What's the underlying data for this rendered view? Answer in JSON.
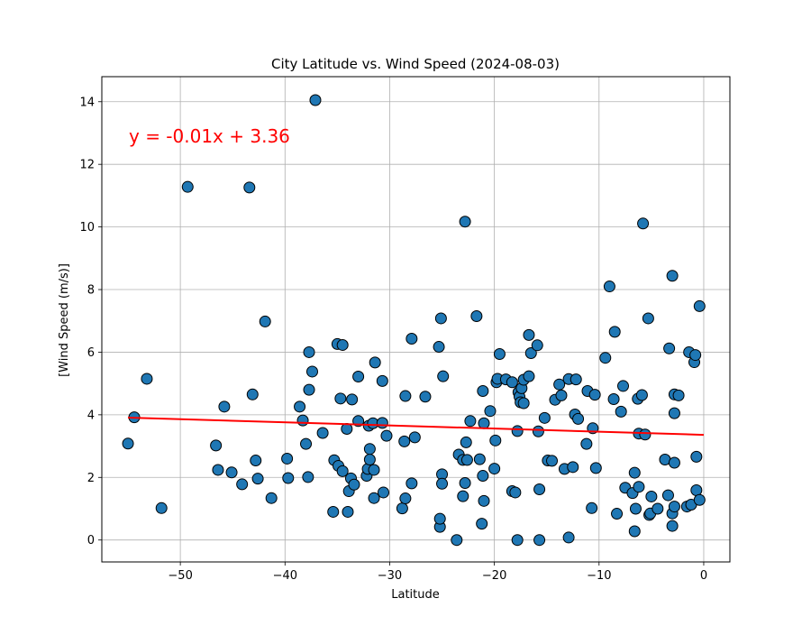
{
  "chart_data": {
    "type": "scatter",
    "title": "City Latitude vs. Wind Speed (2024-08-03)",
    "xlabel": "Latitude",
    "ylabel": "[Wind Speed (m/s)]",
    "xlim": [
      -57.5,
      2.5
    ],
    "ylim": [
      -0.7,
      14.8
    ],
    "xticks": [
      -50,
      -40,
      -30,
      -20,
      -10,
      0
    ],
    "xtick_labels": [
      "−50",
      "−40",
      "−30",
      "−20",
      "−10",
      "0"
    ],
    "yticks": [
      0,
      2,
      4,
      6,
      8,
      10,
      12,
      14
    ],
    "ytick_labels": [
      "0",
      "2",
      "4",
      "6",
      "8",
      "10",
      "12",
      "14"
    ],
    "grid": true,
    "marker_color": "#1f77b4",
    "marker_edge": "#000000",
    "regression": {
      "equation": "y = -0.01x + 3.36",
      "slope": -0.01,
      "intercept": 3.36,
      "x_range": [
        -55,
        0
      ],
      "color": "#ff0000"
    },
    "points": [
      [
        -55,
        3.08
      ],
      [
        -54.4,
        3.92
      ],
      [
        -53.2,
        5.15
      ],
      [
        -51.8,
        1.02
      ],
      [
        -49.3,
        11.28
      ],
      [
        -46.6,
        3.02
      ],
      [
        -46.4,
        2.24
      ],
      [
        -45.8,
        4.26
      ],
      [
        -45.1,
        2.16
      ],
      [
        -44.1,
        1.78
      ],
      [
        -43.4,
        11.26
      ],
      [
        -43.1,
        4.65
      ],
      [
        -42.8,
        2.54
      ],
      [
        -42.6,
        1.96
      ],
      [
        -41.9,
        6.98
      ],
      [
        -41.3,
        1.34
      ],
      [
        -39.8,
        2.6
      ],
      [
        -39.7,
        1.98
      ],
      [
        -38.6,
        4.26
      ],
      [
        -38.3,
        3.82
      ],
      [
        -38,
        3.07
      ],
      [
        -37.8,
        2.01
      ],
      [
        -37.7,
        4.8
      ],
      [
        -37.7,
        6.0
      ],
      [
        -37.4,
        5.38
      ],
      [
        -37.1,
        14.05
      ],
      [
        -36.4,
        3.42
      ],
      [
        -35.4,
        0.9
      ],
      [
        -35.3,
        2.55
      ],
      [
        -35.0,
        6.26
      ],
      [
        -34.9,
        2.37
      ],
      [
        -34.7,
        4.52
      ],
      [
        -34.5,
        6.23
      ],
      [
        -34.5,
        2.2
      ],
      [
        -34.1,
        3.55
      ],
      [
        -33.9,
        1.56
      ],
      [
        -34.0,
        0.9
      ],
      [
        -33.6,
        4.49
      ],
      [
        -33.7,
        1.97
      ],
      [
        -33.4,
        1.77
      ],
      [
        -33.0,
        5.22
      ],
      [
        -33.0,
        3.8
      ],
      [
        -32.2,
        2.05
      ],
      [
        -32.1,
        2.27
      ],
      [
        -31.9,
        2.57
      ],
      [
        -31.9,
        2.91
      ],
      [
        -32.0,
        3.65
      ],
      [
        -31.5,
        2.24
      ],
      [
        -31.6,
        3.73
      ],
      [
        -31.5,
        1.34
      ],
      [
        -31.4,
        5.67
      ],
      [
        -30.7,
        5.08
      ],
      [
        -30.6,
        1.52
      ],
      [
        -30.7,
        3.74
      ],
      [
        -30.3,
        3.33
      ],
      [
        -28.8,
        1.01
      ],
      [
        -28.6,
        3.15
      ],
      [
        -28.5,
        4.6
      ],
      [
        -28.5,
        1.33
      ],
      [
        -27.9,
        1.81
      ],
      [
        -27.9,
        6.43
      ],
      [
        -27.6,
        3.28
      ],
      [
        -26.6,
        4.58
      ],
      [
        -25.3,
        6.17
      ],
      [
        -25.2,
        0.42
      ],
      [
        -25.2,
        0.68
      ],
      [
        -25.1,
        7.08
      ],
      [
        -25,
        2.1
      ],
      [
        -25,
        1.8
      ],
      [
        -24.9,
        5.23
      ],
      [
        -23.6,
        0
      ],
      [
        -23.4,
        2.73
      ],
      [
        -23,
        2.56
      ],
      [
        -23,
        1.4
      ],
      [
        -22.8,
        1.82
      ],
      [
        -22.8,
        10.17
      ],
      [
        -22.7,
        3.12
      ],
      [
        -22.6,
        2.56
      ],
      [
        -22.3,
        3.8
      ],
      [
        -21.7,
        7.15
      ],
      [
        -21.4,
        2.58
      ],
      [
        -21.2,
        0.52
      ],
      [
        -21.1,
        4.76
      ],
      [
        -21.1,
        2.05
      ],
      [
        -21.0,
        1.25
      ],
      [
        -21.0,
        3.73
      ],
      [
        -20.4,
        4.12
      ],
      [
        -20,
        2.28
      ],
      [
        -19.9,
        3.18
      ],
      [
        -19.8,
        5.04
      ],
      [
        -19.7,
        5.15
      ],
      [
        -19.5,
        5.94
      ],
      [
        -18.9,
        5.13
      ],
      [
        -18.3,
        5.04
      ],
      [
        -18.3,
        1.56
      ],
      [
        -18.0,
        1.52
      ],
      [
        -17.8,
        0.0
      ],
      [
        -17.8,
        3.48
      ],
      [
        -17.7,
        4.72
      ],
      [
        -17.6,
        4.58
      ],
      [
        -17.5,
        4.4
      ],
      [
        -17.4,
        4.85
      ],
      [
        -17.2,
        4.37
      ],
      [
        -17.2,
        5.12
      ],
      [
        -16.7,
        6.55
      ],
      [
        -16.7,
        5.23
      ],
      [
        -16.5,
        5.97
      ],
      [
        -15.9,
        6.22
      ],
      [
        -15.8,
        3.47
      ],
      [
        -15.7,
        1.62
      ],
      [
        -15.7,
        0
      ],
      [
        -15.2,
        3.9
      ],
      [
        -14.9,
        2.54
      ],
      [
        -14.5,
        2.53
      ],
      [
        -14.2,
        4.48
      ],
      [
        -13.8,
        4.97
      ],
      [
        -13.6,
        4.62
      ],
      [
        -13.3,
        2.27
      ],
      [
        -12.9,
        0.08
      ],
      [
        -12.9,
        5.14
      ],
      [
        -12.5,
        2.33
      ],
      [
        -12.3,
        4.01
      ],
      [
        -12.2,
        5.13
      ],
      [
        -12.0,
        3.87
      ],
      [
        -11.1,
        4.76
      ],
      [
        -11.2,
        3.07
      ],
      [
        -10.7,
        1.02
      ],
      [
        -10.6,
        3.57
      ],
      [
        -10.4,
        4.64
      ],
      [
        -10.3,
        2.3
      ],
      [
        -9.4,
        5.82
      ],
      [
        -9.0,
        8.1
      ],
      [
        -8.6,
        4.5
      ],
      [
        -8.5,
        6.65
      ],
      [
        -8.3,
        0.84
      ],
      [
        -7.9,
        4.1
      ],
      [
        -7.7,
        4.92
      ],
      [
        -7.5,
        1.67
      ],
      [
        -6.8,
        1.5
      ],
      [
        -6.6,
        2.15
      ],
      [
        -6.6,
        0.28
      ],
      [
        -6.5,
        1.0
      ],
      [
        -6.3,
        4.51
      ],
      [
        -6.2,
        1.7
      ],
      [
        -6.2,
        3.4
      ],
      [
        -5.9,
        4.63
      ],
      [
        -5.8,
        10.11
      ],
      [
        -5.6,
        3.37
      ],
      [
        -5.3,
        7.08
      ],
      [
        -5.2,
        0.8
      ],
      [
        -5.1,
        0.85
      ],
      [
        -5,
        1.39
      ],
      [
        -4.4,
        1.0
      ],
      [
        -3.7,
        2.57
      ],
      [
        -3.4,
        1.43
      ],
      [
        -3.3,
        6.12
      ],
      [
        -3.0,
        8.44
      ],
      [
        -3.0,
        0.45
      ],
      [
        -3.0,
        0.85
      ],
      [
        -2.8,
        4.65
      ],
      [
        -2.8,
        4.05
      ],
      [
        -2.8,
        2.47
      ],
      [
        -2.8,
        1.07
      ],
      [
        -2.4,
        4.62
      ],
      [
        -1.6,
        1.07
      ],
      [
        -1.4,
        6.0
      ],
      [
        -1.2,
        1.13
      ],
      [
        -0.9,
        5.68
      ],
      [
        -0.8,
        5.91
      ],
      [
        -0.7,
        1.59
      ],
      [
        -0.7,
        2.66
      ],
      [
        -0.4,
        7.47
      ],
      [
        -0.4,
        1.28
      ]
    ]
  }
}
